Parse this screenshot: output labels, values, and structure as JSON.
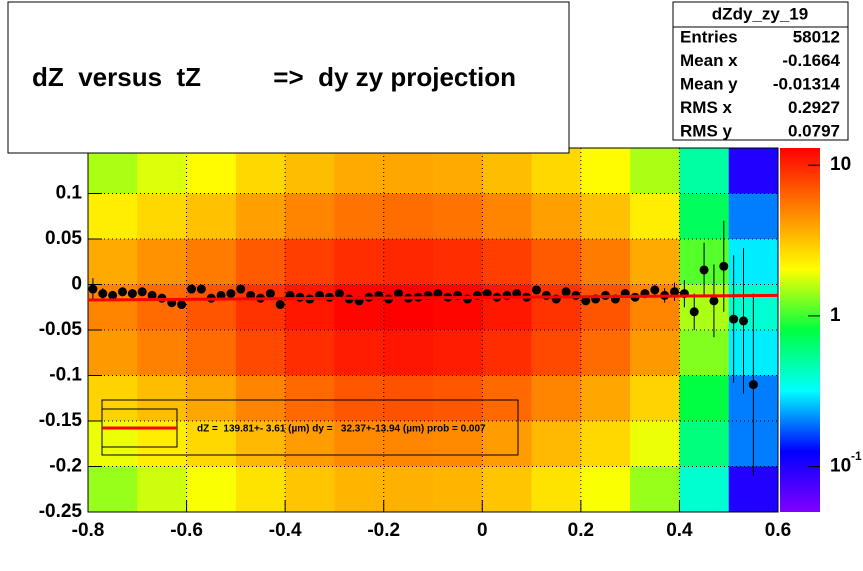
{
  "chart_data": {
    "type": "heatmap",
    "title": "dZ  versus  tZ          =>  dy zy projection",
    "stats": {
      "name": "dZdy_zy_19",
      "rows": [
        {
          "label": "Entries",
          "value": 58012
        },
        {
          "label": "Mean x",
          "value": -0.1664
        },
        {
          "label": "Mean y",
          "value": -0.01314
        },
        {
          "label": "RMS x",
          "value": 0.2927
        },
        {
          "label": "RMS y",
          "value": 0.0797
        }
      ]
    },
    "legend_text": "dZ =  139.81+- 3.61 (µm) dy =   32.37+-13.94 (µm) prob = 0.007",
    "xlim": [
      -0.8,
      0.6
    ],
    "ylim": [
      -0.25,
      0.15
    ],
    "xticks": [
      -0.8,
      -0.6,
      -0.4,
      -0.2,
      0,
      0.2,
      0.4,
      0.6
    ],
    "yticks": [
      -0.25,
      -0.2,
      -0.15,
      -0.1,
      -0.05,
      0,
      0.05,
      0.1
    ],
    "grid": true,
    "x_bins": [
      -0.8,
      -0.7,
      -0.6,
      -0.5,
      -0.4,
      -0.3,
      -0.2,
      -0.1,
      0,
      0.1,
      0.2,
      0.3,
      0.4,
      0.5,
      0.6
    ],
    "y_bins": [
      0.15,
      0.1,
      0.05,
      0,
      -0.05,
      -0.1,
      -0.15,
      -0.2,
      -0.25
    ],
    "z": [
      [
        1.5,
        1.8,
        2.1,
        2.7,
        3.3,
        3.8,
        3.9,
        3.8,
        3.3,
        2.7,
        2.1,
        1.5,
        0.5,
        0.1
      ],
      [
        2.3,
        2.7,
        3.2,
        4.1,
        5.0,
        5.6,
        5.9,
        5.6,
        5.0,
        4.1,
        3.2,
        2.3,
        0.7,
        0.2
      ],
      [
        3.8,
        4.5,
        5.3,
        6.8,
        8.3,
        9.4,
        9.8,
        9.4,
        8.3,
        6.8,
        5.3,
        3.8,
        1.1,
        0.3
      ],
      [
        5,
        6,
        7,
        9,
        11,
        12.5,
        13,
        12.5,
        11,
        9,
        7,
        5,
        1.5,
        0.4
      ],
      [
        4.3,
        5.1,
        6.0,
        7.7,
        9.4,
        10.6,
        11.1,
        10.6,
        9.4,
        7.7,
        6.0,
        4.3,
        1.3,
        0.3
      ],
      [
        2.8,
        3.3,
        3.9,
        5.0,
        6.1,
        6.9,
        7.2,
        6.9,
        6.1,
        5.0,
        3.9,
        2.8,
        0.8,
        0.2
      ],
      [
        1.9,
        2.3,
        2.7,
        3.4,
        4.2,
        4.8,
        4.9,
        4.8,
        4.2,
        3.4,
        2.7,
        1.9,
        0.6,
        0.2
      ],
      [
        1.4,
        1.7,
        2.0,
        2.5,
        3.1,
        3.5,
        3.6,
        3.5,
        3.1,
        2.5,
        2.0,
        1.4,
        0.4,
        0.1
      ]
    ],
    "zlim": [
      0.05,
      13
    ],
    "zlog": true,
    "zticks": [
      10,
      1,
      {
        "value": 0.1,
        "label": "10",
        "exponent": "-1"
      }
    ],
    "palette": [
      "#8000ff",
      "#0000ff",
      "#00ffff",
      "#00ff40",
      "#ffff00",
      "#ff8000",
      "#ff0000"
    ],
    "profile": {
      "color": "#000000",
      "x": [
        -0.79,
        -0.77,
        -0.75,
        -0.73,
        -0.71,
        -0.69,
        -0.67,
        -0.65,
        -0.63,
        -0.61,
        -0.59,
        -0.57,
        -0.55,
        -0.53,
        -0.51,
        -0.49,
        -0.47,
        -0.45,
        -0.43,
        -0.41,
        -0.39,
        -0.37,
        -0.35,
        -0.33,
        -0.31,
        -0.29,
        -0.27,
        -0.25,
        -0.23,
        -0.21,
        -0.19,
        -0.17,
        -0.15,
        -0.13,
        -0.11,
        -0.09,
        -0.07,
        -0.05,
        -0.03,
        -0.01,
        0.01,
        0.03,
        0.05,
        0.07,
        0.09,
        0.11,
        0.13,
        0.15,
        0.17,
        0.19,
        0.21,
        0.23,
        0.25,
        0.27,
        0.29,
        0.31,
        0.33,
        0.35,
        0.37,
        0.39,
        0.41,
        0.43,
        0.45,
        0.47,
        0.49,
        0.51,
        0.53,
        0.55
      ],
      "y": [
        -0.005,
        -0.01,
        -0.012,
        -0.008,
        -0.01,
        -0.008,
        -0.012,
        -0.015,
        -0.02,
        -0.022,
        -0.005,
        -0.005,
        -0.015,
        -0.012,
        -0.01,
        -0.005,
        -0.012,
        -0.015,
        -0.01,
        -0.022,
        -0.012,
        -0.014,
        -0.016,
        -0.012,
        -0.014,
        -0.01,
        -0.016,
        -0.018,
        -0.014,
        -0.012,
        -0.016,
        -0.01,
        -0.015,
        -0.014,
        -0.012,
        -0.01,
        -0.014,
        -0.012,
        -0.016,
        -0.012,
        -0.01,
        -0.014,
        -0.012,
        -0.01,
        -0.014,
        -0.006,
        -0.012,
        -0.016,
        -0.008,
        -0.012,
        -0.018,
        -0.016,
        -0.012,
        -0.016,
        -0.01,
        -0.014,
        -0.01,
        -0.006,
        -0.012,
        -0.008,
        -0.01,
        -0.03,
        0.016,
        -0.018,
        0.02,
        -0.038,
        -0.04,
        -0.11
      ],
      "err": [
        0.012,
        0.006,
        0.005,
        0.005,
        0.005,
        0.005,
        0.004,
        0.004,
        0.004,
        0.004,
        0.004,
        0.004,
        0.004,
        0.004,
        0.004,
        0.004,
        0.004,
        0.004,
        0.004,
        0.004,
        0.004,
        0.004,
        0.004,
        0.004,
        0.004,
        0.004,
        0.004,
        0.004,
        0.004,
        0.004,
        0.004,
        0.004,
        0.004,
        0.004,
        0.004,
        0.004,
        0.004,
        0.004,
        0.004,
        0.004,
        0.004,
        0.004,
        0.004,
        0.004,
        0.004,
        0.004,
        0.004,
        0.004,
        0.004,
        0.004,
        0.004,
        0.004,
        0.004,
        0.004,
        0.004,
        0.004,
        0.005,
        0.006,
        0.008,
        0.01,
        0.015,
        0.02,
        0.03,
        0.04,
        0.05,
        0.07,
        0.08,
        0.1
      ]
    },
    "fit": {
      "color": "#ff0000",
      "x": [
        -0.8,
        0.6
      ],
      "y": [
        -0.017,
        -0.012
      ]
    }
  }
}
